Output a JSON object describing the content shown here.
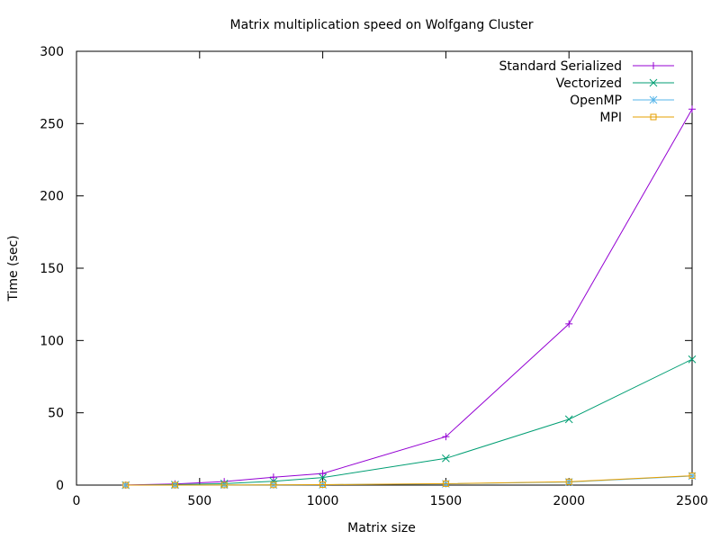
{
  "chart_data": {
    "type": "line",
    "title": "Matrix multiplication speed on Wolfgang Cluster",
    "xlabel": "Matrix size",
    "ylabel": "Time (sec)",
    "xlim": [
      0,
      2500
    ],
    "ylim": [
      0,
      300
    ],
    "xticks": [
      0,
      500,
      1000,
      1500,
      2000,
      2500
    ],
    "yticks": [
      0,
      50,
      100,
      150,
      200,
      250,
      300
    ],
    "grid": false,
    "legend_position": "top-right",
    "x": [
      200,
      400,
      600,
      800,
      1000,
      1500,
      2000,
      2500
    ],
    "series": [
      {
        "name": "Standard Serialized",
        "color": "#9400d3",
        "marker": "plus",
        "values": [
          0.05,
          0.8,
          2.4,
          5.5,
          8.0,
          33.5,
          111.5,
          260.0
        ]
      },
      {
        "name": "Vectorized",
        "color": "#009e73",
        "marker": "cross",
        "values": [
          0.02,
          0.3,
          1.0,
          2.6,
          5.2,
          18.5,
          45.5,
          87.0
        ]
      },
      {
        "name": "OpenMP",
        "color": "#56b4e9",
        "marker": "asterisk",
        "values": [
          0.01,
          0.02,
          0.05,
          0.12,
          0.25,
          0.9,
          2.1,
          6.3
        ]
      },
      {
        "name": "MPI",
        "color": "#e69f00",
        "marker": "square",
        "values": [
          0.01,
          0.03,
          0.07,
          0.15,
          0.3,
          1.0,
          2.3,
          6.5
        ]
      }
    ]
  }
}
